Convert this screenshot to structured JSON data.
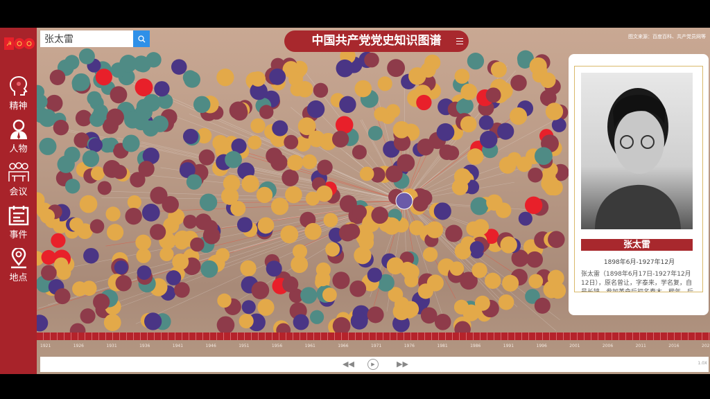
{
  "search": {
    "value": "张太雷",
    "button_icon": "search-icon"
  },
  "header": {
    "title": "中国共产党党史知识图谱",
    "menu_icon": "menu-icon",
    "source": "图文来源：百度百科、共产党员网等"
  },
  "sidebar": {
    "items": [
      {
        "label": "精神",
        "icon": "head-icon"
      },
      {
        "label": "人物",
        "icon": "person-icon"
      },
      {
        "label": "会议",
        "icon": "meeting-icon"
      },
      {
        "label": "事件",
        "icon": "calendar-icon"
      },
      {
        "label": "地点",
        "icon": "location-icon"
      }
    ]
  },
  "colors": {
    "sidebar": "#a8232a",
    "spirit": "#4f8b85",
    "person": "#8e3b4a",
    "meeting": "#4a3585",
    "event": "#e3a949",
    "highlight": "#e8202a",
    "search_button": "#2f90e8"
  },
  "info_panel": {
    "name": "张太雷",
    "dates": "1898年6月-1927年12月",
    "description": "张太雷（1898年6月17日-1927年12月12日），原名曾让，字泰来，学名复，自号长铗，参加革命后初名春木，楷年，后改"
  },
  "timeline": {
    "ticks": [
      "1921",
      "1926",
      "1931",
      "1936",
      "1941",
      "1946",
      "1951",
      "1956",
      "1961",
      "1966",
      "1971",
      "1976",
      "1981",
      "1986",
      "1991",
      "1996",
      "2001",
      "2006",
      "2011",
      "2016",
      "2021"
    ]
  },
  "player": {
    "rewind_icon": "rewind-icon",
    "play_icon": "play-icon",
    "forward_icon": "fast-forward-icon",
    "speed": "1.0X"
  }
}
